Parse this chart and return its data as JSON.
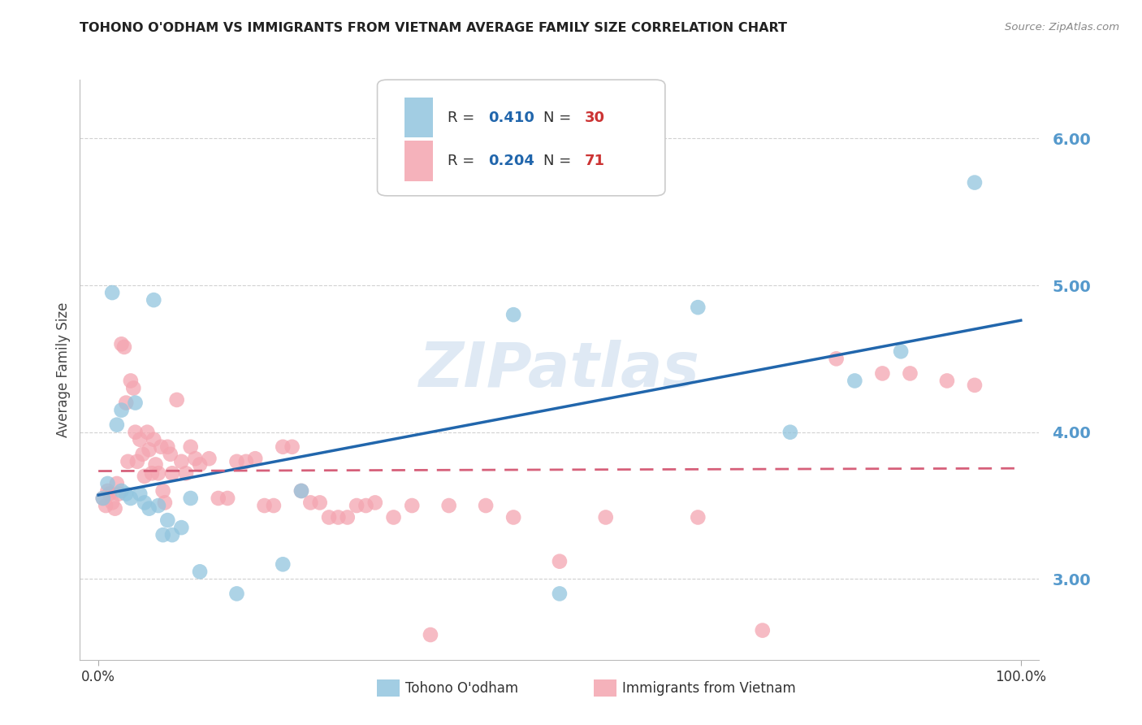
{
  "title": "TOHONO O'ODHAM VS IMMIGRANTS FROM VIETNAM AVERAGE FAMILY SIZE CORRELATION CHART",
  "source": "Source: ZipAtlas.com",
  "ylabel": "Average Family Size",
  "xlim": [
    -0.02,
    1.02
  ],
  "ylim": [
    2.45,
    6.4
  ],
  "yticks": [
    3.0,
    4.0,
    5.0,
    6.0
  ],
  "yticklabels": [
    "3.00",
    "4.00",
    "5.00",
    "6.00"
  ],
  "xticklabels": [
    "0.0%",
    "100.0%"
  ],
  "series1_label": "Tohono O'odham",
  "series2_label": "Immigrants from Vietnam",
  "blue_color": "#92c5de",
  "pink_color": "#f4a5b0",
  "line_blue": "#2166ac",
  "line_pink": "#d6607a",
  "background_color": "#ffffff",
  "grid_color": "#cccccc",
  "title_color": "#222222",
  "axis_label_color": "#444444",
  "ytick_color": "#5599cc",
  "watermark": "ZIPatlas",
  "blue_x": [
    0.005,
    0.01,
    0.015,
    0.02,
    0.025,
    0.025,
    0.03,
    0.035,
    0.04,
    0.045,
    0.05,
    0.055,
    0.06,
    0.065,
    0.07,
    0.075,
    0.08,
    0.09,
    0.1,
    0.11,
    0.15,
    0.2,
    0.22,
    0.45,
    0.5,
    0.65,
    0.75,
    0.82,
    0.87,
    0.95
  ],
  "blue_y": [
    3.55,
    3.65,
    4.95,
    4.05,
    3.6,
    4.15,
    3.58,
    3.55,
    4.2,
    3.58,
    3.52,
    3.48,
    4.9,
    3.5,
    3.3,
    3.4,
    3.3,
    3.35,
    3.55,
    3.05,
    2.9,
    3.1,
    3.6,
    4.8,
    2.9,
    4.85,
    4.0,
    4.35,
    4.55,
    5.7
  ],
  "pink_x": [
    0.005,
    0.008,
    0.01,
    0.012,
    0.015,
    0.018,
    0.02,
    0.022,
    0.025,
    0.028,
    0.03,
    0.032,
    0.035,
    0.038,
    0.04,
    0.042,
    0.045,
    0.048,
    0.05,
    0.053,
    0.055,
    0.058,
    0.06,
    0.062,
    0.065,
    0.068,
    0.07,
    0.072,
    0.075,
    0.078,
    0.08,
    0.085,
    0.09,
    0.095,
    0.1,
    0.105,
    0.11,
    0.12,
    0.13,
    0.14,
    0.15,
    0.16,
    0.17,
    0.18,
    0.19,
    0.2,
    0.21,
    0.22,
    0.23,
    0.24,
    0.25,
    0.26,
    0.27,
    0.28,
    0.29,
    0.3,
    0.32,
    0.34,
    0.36,
    0.38,
    0.42,
    0.45,
    0.5,
    0.55,
    0.65,
    0.72,
    0.8,
    0.85,
    0.88,
    0.92,
    0.95
  ],
  "pink_y": [
    3.55,
    3.5,
    3.6,
    3.58,
    3.52,
    3.48,
    3.65,
    3.58,
    4.6,
    4.58,
    4.2,
    3.8,
    4.35,
    4.3,
    4.0,
    3.8,
    3.95,
    3.85,
    3.7,
    4.0,
    3.88,
    3.72,
    3.95,
    3.78,
    3.72,
    3.9,
    3.6,
    3.52,
    3.9,
    3.85,
    3.72,
    4.22,
    3.8,
    3.72,
    3.9,
    3.82,
    3.78,
    3.82,
    3.55,
    3.55,
    3.8,
    3.8,
    3.82,
    3.5,
    3.5,
    3.9,
    3.9,
    3.6,
    3.52,
    3.52,
    3.42,
    3.42,
    3.42,
    3.5,
    3.5,
    3.52,
    3.42,
    3.5,
    2.62,
    3.5,
    3.5,
    3.42,
    3.12,
    3.42,
    3.42,
    2.65,
    4.5,
    4.4,
    4.4,
    4.35,
    4.32
  ]
}
